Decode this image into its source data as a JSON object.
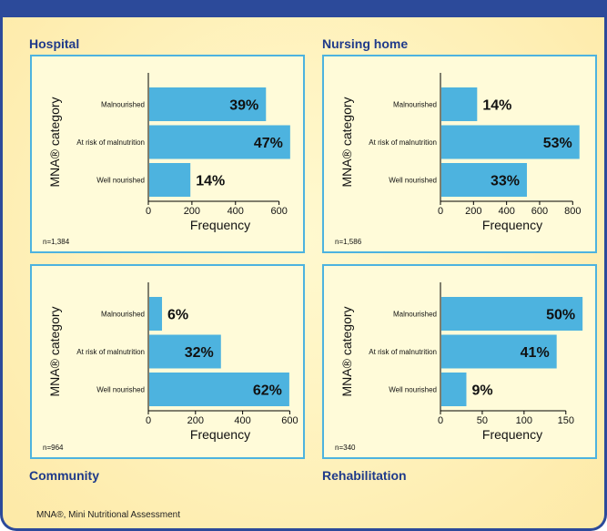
{
  "footnote": "MNA®, Mini Nutritional Assessment",
  "chart_data": [
    {
      "type": "bar",
      "section_title": "Hospital",
      "ylabel": "MNA® category",
      "xlabel": "Frequency",
      "n_label": "n=1,384",
      "categories": [
        "Malnourished",
        "At risk of malnutrition",
        "Well nourished"
      ],
      "values": [
        540,
        651,
        193
      ],
      "percent_labels": [
        "39%",
        "47%",
        "14%"
      ],
      "xticks": [
        0,
        200,
        400,
        600
      ],
      "xlim": [
        0,
        660
      ]
    },
    {
      "type": "bar",
      "section_title": "Nursing home",
      "ylabel": "MNA® category",
      "xlabel": "Frequency",
      "n_label": "n=1,586",
      "categories": [
        "Malnourished",
        "At risk of malnutrition",
        "Well nourished"
      ],
      "values": [
        222,
        841,
        523
      ],
      "percent_labels": [
        "14%",
        "53%",
        "33%"
      ],
      "xticks": [
        0,
        200,
        400,
        600,
        800
      ],
      "xlim": [
        0,
        870
      ]
    },
    {
      "type": "bar",
      "section_title": "Community",
      "ylabel": "MNA® category",
      "xlabel": "Frequency",
      "n_label": "n=964",
      "categories": [
        "Malnourished",
        "At risk of malnutrition",
        "Well nourished"
      ],
      "values": [
        58,
        308,
        598
      ],
      "percent_labels": [
        "6%",
        "32%",
        "62%"
      ],
      "xticks": [
        0,
        200,
        400,
        600
      ],
      "xlim": [
        0,
        610
      ]
    },
    {
      "type": "bar",
      "section_title": "Rehabilitation",
      "ylabel": "MNA® category",
      "xlabel": "Frequency",
      "n_label": "n=340",
      "categories": [
        "Malnourished",
        "At risk of malnutrition",
        "Well nourished"
      ],
      "values": [
        170,
        139,
        31
      ],
      "percent_labels": [
        "50%",
        "41%",
        "9%"
      ],
      "xticks": [
        0,
        50,
        100,
        150
      ],
      "xlim": [
        0,
        172
      ]
    }
  ]
}
